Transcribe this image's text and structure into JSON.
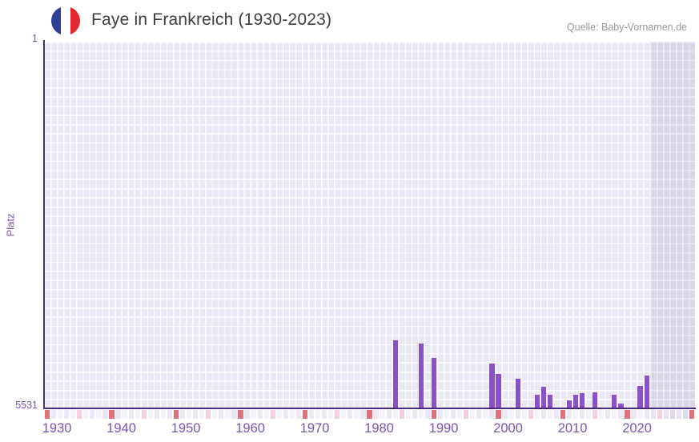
{
  "header": {
    "title": "Faye in Frankreich (1930-2023)",
    "source": "Quelle: Baby-Vornamen.de",
    "flag_icon": "france-flag-icon"
  },
  "chart_data": {
    "type": "bar",
    "title": "Faye in Frankreich (1930-2023)",
    "xlabel": "",
    "ylabel": "Platz",
    "y_axis": {
      "top_label": "1",
      "bottom_label": "5531",
      "min": 1,
      "max": 5531,
      "inverted": true
    },
    "x_axis": {
      "start_year": 1928,
      "end_year": 2028,
      "tick_years": [
        1930,
        1940,
        1950,
        1960,
        1970,
        1980,
        1990,
        2000,
        2010,
        2020
      ]
    },
    "bars": [
      {
        "year": 1982,
        "platz": 4500
      },
      {
        "year": 1986,
        "platz": 4549
      },
      {
        "year": 1988,
        "platz": 4767
      },
      {
        "year": 1997,
        "platz": 4852
      },
      {
        "year": 1998,
        "platz": 5010
      },
      {
        "year": 2001,
        "platz": 5082
      },
      {
        "year": 2004,
        "platz": 5325
      },
      {
        "year": 2005,
        "platz": 5204
      },
      {
        "year": 2006,
        "platz": 5325
      },
      {
        "year": 2009,
        "platz": 5410
      },
      {
        "year": 2010,
        "platz": 5325
      },
      {
        "year": 2011,
        "platz": 5301
      },
      {
        "year": 2013,
        "platz": 5288
      },
      {
        "year": 2016,
        "platz": 5325
      },
      {
        "year": 2017,
        "platz": 5458
      },
      {
        "year": 2020,
        "platz": 5191
      },
      {
        "year": 2021,
        "platz": 5034
      }
    ],
    "shaded_region": {
      "start_year": 2022,
      "end_year": 2028
    },
    "bottom_strip_markers": {
      "red_years": [
        1928,
        1938,
        1948,
        1958,
        1968,
        1978,
        1988,
        1998,
        2008,
        2018,
        2028
      ],
      "pink_years": [
        1933,
        1943,
        1953,
        1963,
        1973,
        1983,
        1993,
        2003,
        2013,
        2023
      ]
    },
    "legend": "none",
    "grid": true,
    "colors": {
      "bar": "#8a52c6",
      "axis_line": "#4e2982",
      "axis_labels": "#7c54ac",
      "grid_cell": "#ebe7f4",
      "grid_gap": "#ffffff",
      "shaded_cell": "#dbd5e8",
      "shaded_gap": "#efedf4",
      "strip_cell_a": "#f6f2fb",
      "strip_cell_b": "#ece6f5",
      "strip_cell_a_shaded": "#eae3f2",
      "strip_cell_b_shaded": "#e1daeb",
      "strip_red": "#e0707b",
      "strip_pink": "#f2d0df",
      "title_text": "#3d3d3d",
      "source_text": "#9a9a9a",
      "flag_blue": "#2e3e95",
      "flag_red": "#e42832"
    }
  }
}
